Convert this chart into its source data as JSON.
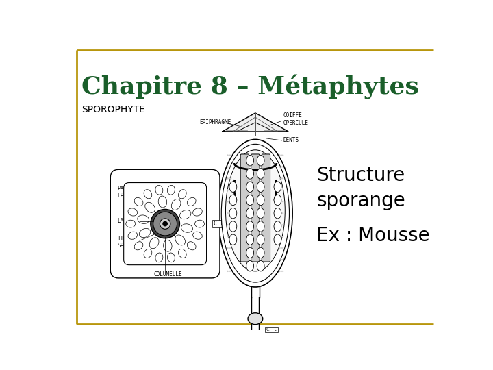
{
  "title": "Chapitre 8 – Métaphytes",
  "title_color": "#1a5e2a",
  "title_fontsize": 26,
  "subtitle": "SPOROPHYTE",
  "subtitle_fontsize": 10,
  "subtitle_color": "#000000",
  "text1": "Structure\nsporange",
  "text2": "Ex : Mousse",
  "text_fontsize": 20,
  "text_color": "#000000",
  "border_color": "#b8960c",
  "border_linewidth": 2.0,
  "bg_color": "#ffffff"
}
